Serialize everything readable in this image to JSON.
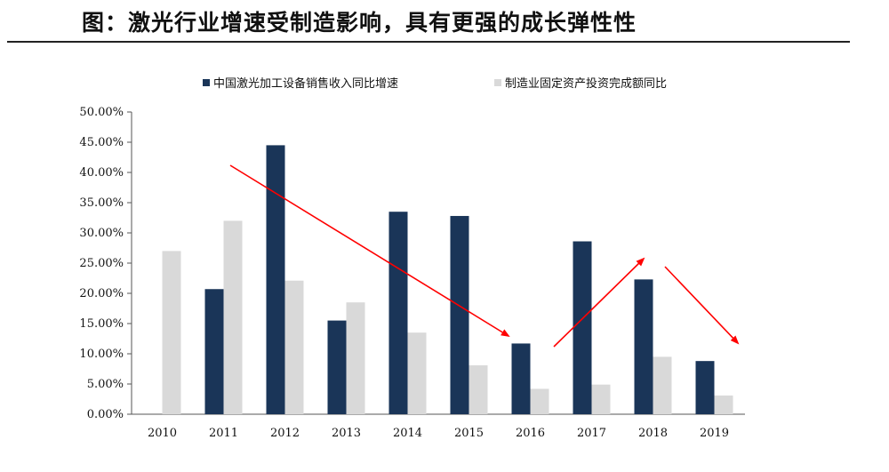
{
  "page": {
    "title": "图：激光行业增速受制造影响，具有更强的成长弹性性"
  },
  "chart_data": {
    "type": "bar",
    "categories": [
      "2010",
      "2011",
      "2012",
      "2013",
      "2014",
      "2015",
      "2016",
      "2017",
      "2018",
      "2019"
    ],
    "series": [
      {
        "name": "中国激光加工设备销售收入同比增速",
        "color": "#1a3558",
        "values": [
          null,
          20.7,
          44.5,
          15.5,
          33.5,
          32.8,
          11.7,
          28.6,
          22.3,
          8.8
        ]
      },
      {
        "name": "制造业固定资产投资完成额同比",
        "color": "#d9d9d9",
        "values": [
          27.0,
          32.0,
          22.1,
          18.5,
          13.5,
          8.1,
          4.2,
          4.9,
          9.5,
          3.1
        ]
      }
    ],
    "ylim": [
      0,
      50
    ],
    "yticks": [
      "0.00%",
      "5.00%",
      "10.00%",
      "15.00%",
      "20.00%",
      "25.00%",
      "30.00%",
      "35.00%",
      "40.00%",
      "45.00%",
      "50.00%"
    ],
    "legend_position": "top",
    "grid": false,
    "annotations": {
      "arrow_color": "#ff0000",
      "trend_arrows": [
        "down",
        "up",
        "down"
      ]
    }
  }
}
